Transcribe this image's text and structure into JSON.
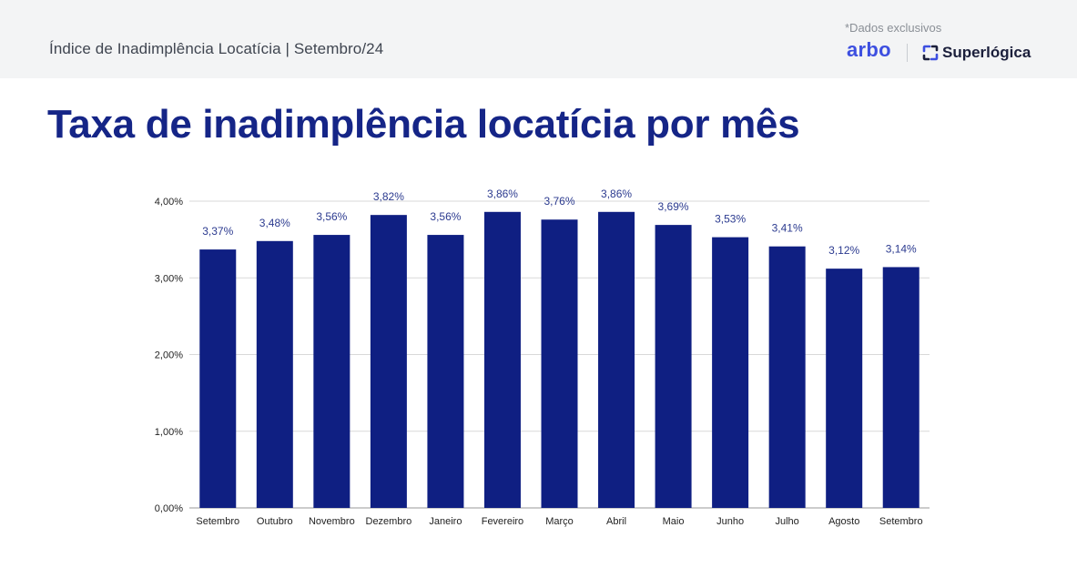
{
  "header": {
    "title": "Índice de Inadimplência Locatícia | Setembro/24",
    "exclusive_note": "*Dados exclusivos",
    "logo_arbo": "arbo",
    "logo_superlogica": "Superlógica",
    "superlogica_icon": "superlogica-logo-icon"
  },
  "colors": {
    "bar": "#0f1f82",
    "title": "#152587",
    "data_label": "#2b3a8f",
    "grid": "#d9d9d9"
  },
  "chart_data": {
    "type": "bar",
    "title": "Taxa de inadimplência locatícia por mês",
    "xlabel": "",
    "ylabel": "",
    "categories": [
      "Setembro",
      "Outubro",
      "Novembro",
      "Dezembro",
      "Janeiro",
      "Fevereiro",
      "Março",
      "Abril",
      "Maio",
      "Junho",
      "Julho",
      "Agosto",
      "Setembro"
    ],
    "values": [
      3.37,
      3.48,
      3.56,
      3.82,
      3.56,
      3.86,
      3.76,
      3.86,
      3.69,
      3.53,
      3.41,
      3.12,
      3.14
    ],
    "value_labels": [
      "3,37%",
      "3,48%",
      "3,56%",
      "3,82%",
      "3,56%",
      "3,86%",
      "3,76%",
      "3,86%",
      "3,69%",
      "3,53%",
      "3,41%",
      "3,12%",
      "3,14%"
    ],
    "ylim": [
      0,
      4
    ],
    "yticks": [
      0,
      1,
      2,
      3,
      4
    ],
    "ytick_labels": [
      "0,00%",
      "1,00%",
      "2,00%",
      "3,00%",
      "4,00%"
    ],
    "grid": true,
    "legend": "none"
  }
}
